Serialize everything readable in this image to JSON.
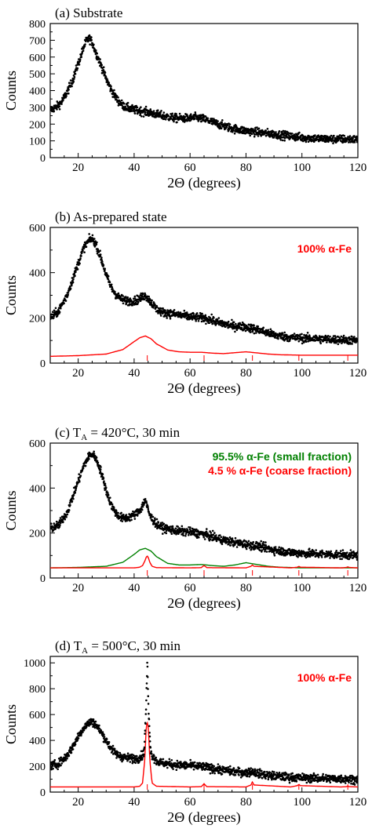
{
  "chart_data": [
    {
      "type": "scatter",
      "panel_label": "(a) Substrate",
      "xlabel": "2Θ (degrees)",
      "ylabel": "Counts",
      "xlim": [
        10,
        120
      ],
      "ylim": [
        0,
        800
      ],
      "x_ticks": [
        20,
        40,
        60,
        80,
        100,
        120
      ],
      "y_ticks": [
        0,
        100,
        200,
        300,
        400,
        500,
        600,
        700,
        800
      ],
      "legend": [],
      "series": [
        {
          "role": "measured",
          "color": "#000000",
          "x": [
            10,
            12,
            14,
            16,
            18,
            20,
            22,
            23,
            24,
            25,
            26,
            28,
            30,
            32,
            34,
            36,
            38,
            40,
            45,
            50,
            55,
            60,
            62,
            65,
            70,
            75,
            80,
            85,
            90,
            95,
            100,
            105,
            110,
            115,
            120
          ],
          "y": [
            285,
            300,
            330,
            390,
            460,
            560,
            660,
            700,
            710,
            690,
            640,
            560,
            470,
            400,
            345,
            310,
            295,
            285,
            270,
            250,
            235,
            235,
            240,
            230,
            200,
            175,
            160,
            150,
            140,
            130,
            120,
            115,
            110,
            110,
            108
          ]
        }
      ]
    },
    {
      "type": "scatter",
      "panel_label": "(b) As-prepared state",
      "xlabel": "2Θ (degrees)",
      "ylabel": "Counts",
      "xlim": [
        10,
        120
      ],
      "ylim": [
        0,
        600
      ],
      "x_ticks": [
        20,
        40,
        60,
        80,
        100,
        120
      ],
      "y_ticks": [
        0,
        200,
        400,
        600
      ],
      "legend": [
        {
          "text": "100% α-Fe",
          "color": "#ff0000"
        }
      ],
      "series": [
        {
          "role": "measured",
          "color": "#000000",
          "x": [
            10,
            13,
            16,
            18,
            20,
            22,
            24,
            25,
            26,
            28,
            30,
            32,
            34,
            36,
            38,
            40,
            42,
            44,
            46,
            48,
            50,
            55,
            60,
            65,
            70,
            75,
            80,
            85,
            90,
            95,
            100,
            105,
            110,
            115,
            120
          ],
          "y": [
            200,
            230,
            300,
            370,
            440,
            510,
            545,
            550,
            535,
            470,
            390,
            330,
            295,
            280,
            275,
            275,
            285,
            300,
            270,
            240,
            225,
            215,
            205,
            200,
            180,
            165,
            160,
            145,
            125,
            115,
            110,
            108,
            105,
            103,
            100
          ]
        },
        {
          "role": "fit",
          "name": "100% α-Fe",
          "color": "#ff0000",
          "x": [
            10,
            20,
            30,
            36,
            40,
            42,
            44,
            46,
            48,
            52,
            56,
            60,
            64,
            68,
            72,
            76,
            80,
            84,
            88,
            92,
            100,
            110,
            120
          ],
          "y": [
            30,
            33,
            40,
            60,
            95,
            112,
            120,
            108,
            85,
            58,
            50,
            48,
            48,
            44,
            42,
            46,
            50,
            45,
            40,
            37,
            35,
            35,
            35
          ]
        }
      ],
      "reflection_ticks": {
        "color": "#ff0000",
        "x": [
          44.7,
          65.0,
          82.3,
          98.9,
          116.4
        ]
      }
    },
    {
      "type": "scatter",
      "panel_label": "(c) T",
      "panel_label_sub": "A",
      "panel_label_rest": " = 420°C, 30 min",
      "xlabel": "2Θ (degrees)",
      "ylabel": "Counts",
      "xlim": [
        10,
        120
      ],
      "ylim": [
        0,
        600
      ],
      "x_ticks": [
        20,
        40,
        60,
        80,
        100,
        120
      ],
      "y_ticks": [
        0,
        200,
        400,
        600
      ],
      "legend": [
        {
          "text": "95.5% α-Fe (small fraction)",
          "color": "#008000"
        },
        {
          "text": "4.5 %  α-Fe (coarse fraction)",
          "color": "#ff0000"
        }
      ],
      "series": [
        {
          "role": "measured",
          "color": "#000000",
          "x": [
            10,
            13,
            16,
            18,
            20,
            22,
            24,
            25,
            26,
            28,
            30,
            32,
            34,
            36,
            38,
            40,
            42,
            43,
            44,
            45,
            46,
            48,
            50,
            55,
            60,
            65,
            70,
            75,
            80,
            85,
            90,
            95,
            100,
            110,
            120
          ],
          "y": [
            220,
            235,
            290,
            360,
            430,
            500,
            545,
            550,
            540,
            480,
            390,
            320,
            280,
            265,
            270,
            280,
            300,
            320,
            350,
            300,
            270,
            240,
            225,
            210,
            205,
            195,
            175,
            160,
            150,
            140,
            125,
            115,
            110,
            105,
            100
          ]
        },
        {
          "role": "fit",
          "name": "95.5% α-Fe (small fraction)",
          "color": "#008000",
          "x": [
            10,
            20,
            30,
            36,
            40,
            42,
            44,
            46,
            48,
            52,
            56,
            60,
            64,
            68,
            72,
            76,
            80,
            84,
            88,
            92,
            100,
            110,
            120
          ],
          "y": [
            45,
            47,
            52,
            70,
            105,
            125,
            132,
            120,
            95,
            65,
            58,
            58,
            60,
            55,
            52,
            58,
            68,
            60,
            52,
            48,
            45,
            45,
            45
          ]
        },
        {
          "role": "fit",
          "name": "4.5 %  α-Fe (coarse fraction)",
          "color": "#ff0000",
          "x": [
            10,
            40,
            42,
            43,
            43.8,
            44.3,
            44.7,
            45.1,
            45.6,
            46.4,
            48,
            60,
            64,
            64.6,
            65,
            65.4,
            66,
            80,
            81.8,
            82.3,
            82.8,
            96,
            98.4,
            98.9,
            99.4,
            114,
            116,
            116.4,
            116.8,
            120
          ],
          "y": [
            45,
            45,
            48,
            55,
            75,
            92,
            98,
            90,
            70,
            52,
            46,
            45,
            46,
            52,
            55,
            52,
            46,
            45,
            52,
            58,
            52,
            45,
            48,
            52,
            48,
            45,
            47,
            50,
            47,
            45
          ]
        }
      ],
      "reflection_ticks": {
        "color": "#ff0000",
        "x": [
          44.7,
          65.0,
          82.3,
          98.9,
          116.4
        ]
      }
    },
    {
      "type": "scatter",
      "panel_label": "(d) T",
      "panel_label_sub": "A",
      "panel_label_rest": " = 500°C, 30 min",
      "xlabel": "2Θ (degrees)",
      "ylabel": "Counts",
      "xlim": [
        10,
        120
      ],
      "ylim": [
        0,
        1050
      ],
      "x_ticks": [
        20,
        40,
        60,
        80,
        100,
        120
      ],
      "y_ticks": [
        0,
        200,
        400,
        600,
        800,
        1000
      ],
      "legend": [
        {
          "text": "100% α-Fe",
          "color": "#ff0000"
        }
      ],
      "series": [
        {
          "role": "measured",
          "color": "#000000",
          "x": [
            10,
            13,
            16,
            18,
            20,
            22,
            24,
            25,
            26,
            28,
            30,
            32,
            34,
            36,
            38,
            40,
            42,
            43.5,
            44.2,
            44.7,
            45.2,
            46,
            48,
            50,
            55,
            60,
            65,
            70,
            75,
            80,
            82.3,
            85,
            90,
            95,
            100,
            110,
            120
          ],
          "y": [
            200,
            220,
            280,
            350,
            430,
            500,
            540,
            545,
            530,
            470,
            400,
            330,
            290,
            270,
            265,
            260,
            265,
            300,
            600,
            1000,
            600,
            300,
            240,
            225,
            210,
            205,
            195,
            175,
            160,
            150,
            160,
            140,
            125,
            115,
            110,
            105,
            100
          ]
        },
        {
          "role": "fit",
          "name": "100% α-Fe",
          "color": "#ff0000",
          "x": [
            10,
            40,
            42,
            43,
            43.8,
            44.3,
            44.7,
            45.1,
            45.6,
            46.4,
            48,
            60,
            64,
            64.6,
            65,
            65.4,
            66,
            80,
            81.8,
            82.3,
            82.8,
            96,
            98.4,
            98.9,
            99.4,
            114,
            116,
            116.4,
            116.8,
            120
          ],
          "y": [
            40,
            40,
            45,
            70,
            250,
            500,
            540,
            500,
            250,
            70,
            45,
            40,
            42,
            55,
            65,
            55,
            42,
            40,
            55,
            80,
            55,
            40,
            50,
            60,
            50,
            40,
            42,
            48,
            42,
            40
          ]
        }
      ],
      "reflection_ticks": {
        "color": "#ff0000",
        "x": [
          44.7,
          65.0,
          82.3,
          98.9,
          116.4
        ]
      }
    }
  ]
}
